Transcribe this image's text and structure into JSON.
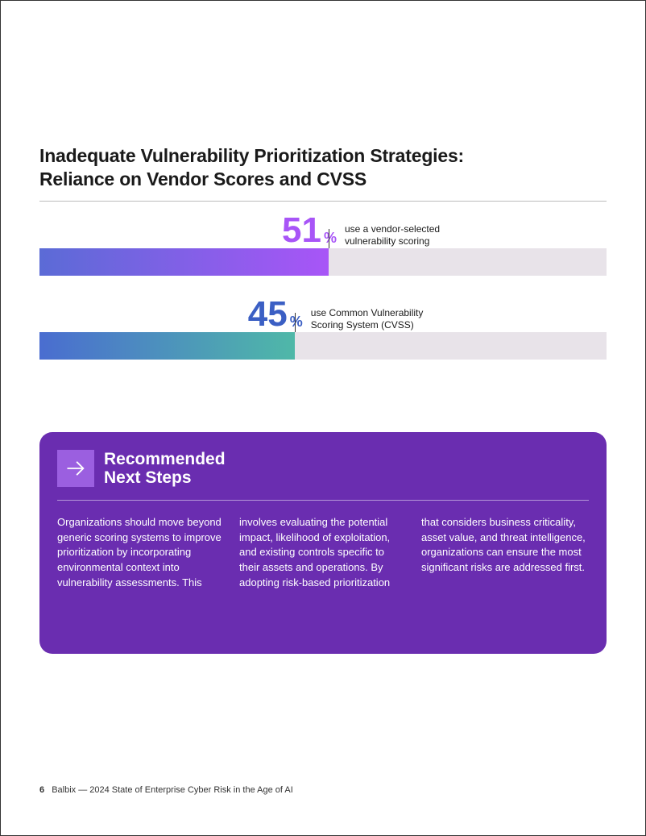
{
  "heading": {
    "line1": "Inadequate Vulnerability Prioritization Strategies:",
    "line2": "Reliance on Vendor Scores and CVSS"
  },
  "bars": [
    {
      "value": 51,
      "pct_text": "51",
      "pct_sign": "%",
      "desc": "use a vendor-selected vulnerability scoring",
      "value_color": "#a855f7",
      "fill_gradient_from": "#5b6bd6",
      "fill_gradient_to": "#a855f7",
      "track_color": "#e8e3e9"
    },
    {
      "value": 45,
      "pct_text": "45",
      "pct_sign": "%",
      "desc": "use Common Vulnerability Scoring System (CVSS)",
      "value_color": "#3b5fc4",
      "fill_gradient_from": "#4a6dd0",
      "fill_gradient_to": "#4fb8a8",
      "track_color": "#e8e3e9"
    }
  ],
  "callout": {
    "title_line1": "Recommended",
    "title_line2": "Next Steps",
    "icon_bg": "#9b5fe0",
    "bg": "#6a2db0",
    "body": "Organizations should move beyond generic scoring systems to improve prioritization by incorporating environmental context into vulnerability assessments. This involves evaluating the potential impact, likelihood of exploitation, and existing controls specific to their assets and operations. By adopting risk-based prioritization that considers business criticality, asset value, and threat intelligence, organizations can ensure the most significant risks are addressed first."
  },
  "footer": {
    "page_number": "6",
    "text": "Balbix — 2024 State of Enterprise Cyber Risk in the Age of AI"
  }
}
